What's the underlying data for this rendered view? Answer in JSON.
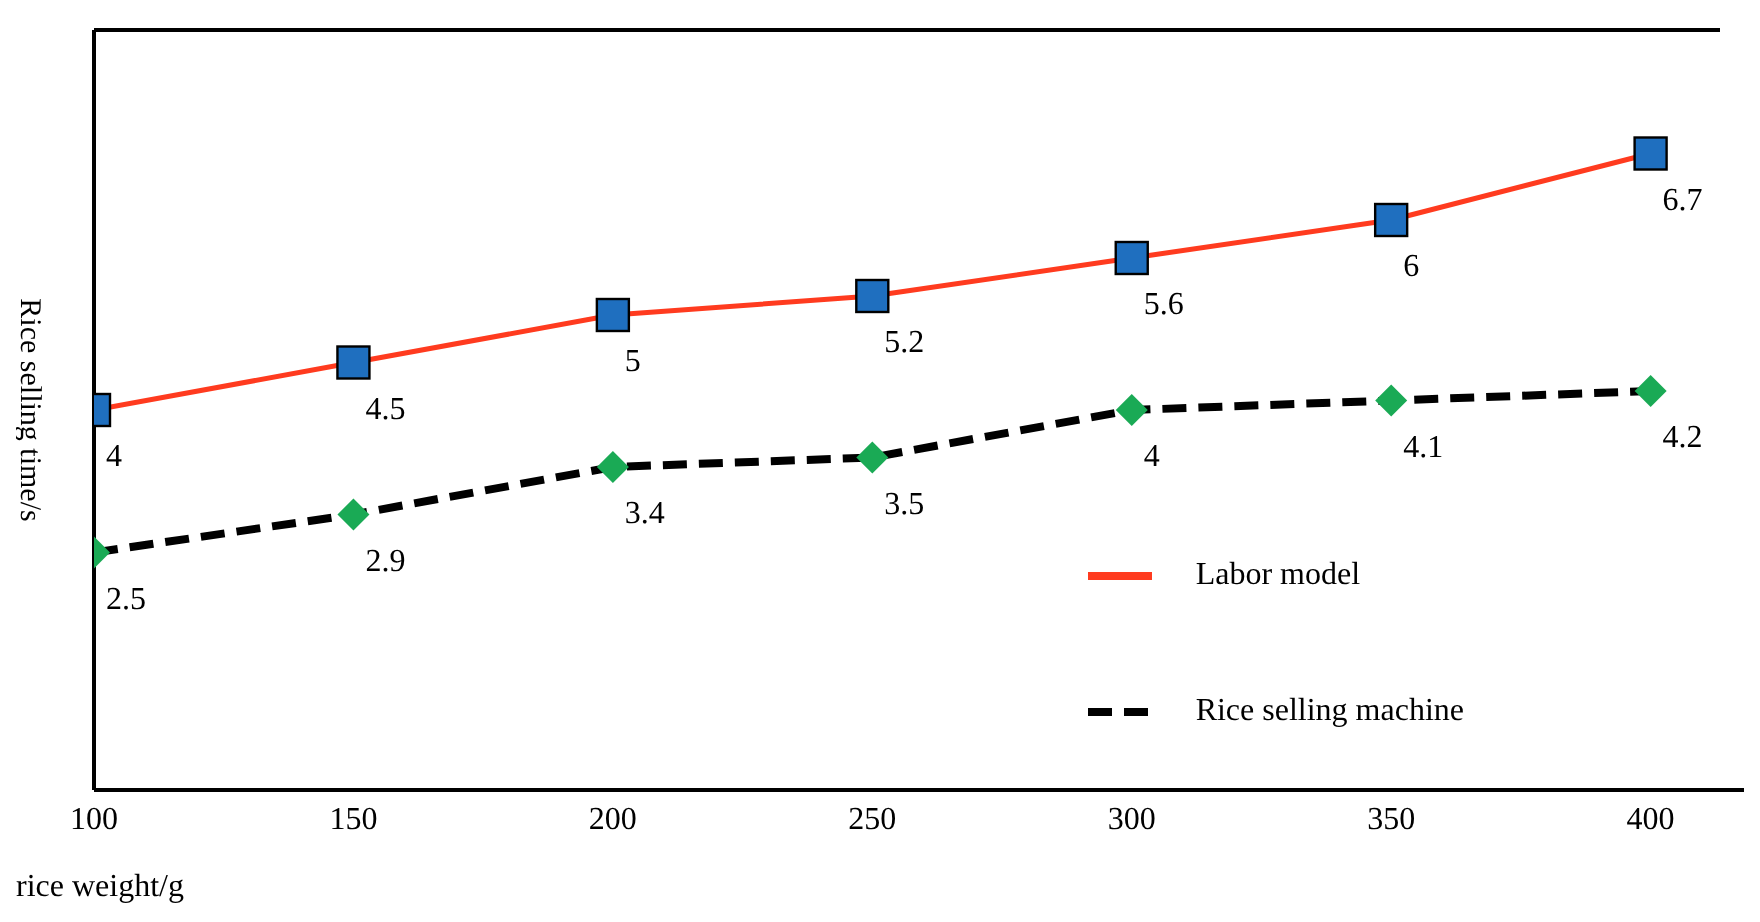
{
  "chart_data": {
    "type": "line",
    "xlabel": "rice weight/g",
    "ylabel": "Rice selling time/s",
    "x": [
      100,
      150,
      200,
      250,
      300,
      350,
      400
    ],
    "series": [
      {
        "name": "Labor model",
        "color": "#ff3b1f",
        "colors": [
          "#1f6fbf",
          "#1f6fbf",
          "#1f6fbf",
          "#1f6fbf",
          "#1f6fbf",
          "#1f6fbf",
          "#1f6fbf"
        ],
        "marker": "square",
        "line_style": "solid",
        "values": [
          4,
          4.5,
          5,
          5.2,
          5.6,
          6,
          6.7
        ]
      },
      {
        "name": "Rice selling machine",
        "color": "#000000",
        "colors": [
          "#1aaa55",
          "#1aaa55",
          "#1aaa55",
          "#1aaa55",
          "#1aaa55",
          "#1aaa55",
          "#1aaa55"
        ],
        "marker": "diamond",
        "line_style": "dashed",
        "values": [
          2.5,
          2.9,
          3.4,
          3.5,
          4,
          4.1,
          4.2
        ]
      }
    ],
    "xlim": [
      100,
      418
    ],
    "xticks": [
      100,
      150,
      200,
      250,
      300,
      350,
      400
    ],
    "ylim": [
      0,
      8
    ],
    "data_labels": true,
    "legend": "right",
    "grid": false
  }
}
